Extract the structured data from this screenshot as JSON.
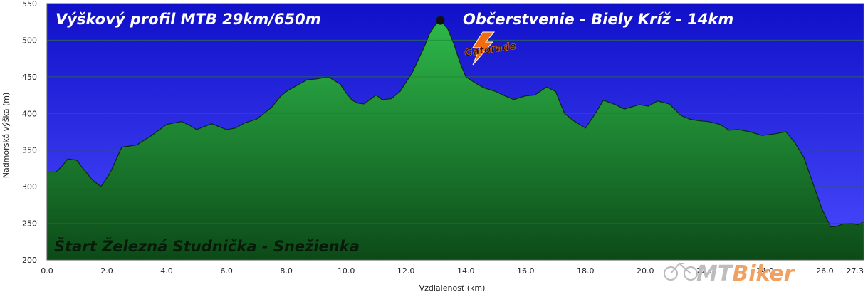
{
  "chart_data": {
    "type": "area",
    "title": "Výškový profil MTB 29km/650m",
    "xlabel": "Vzdialenosť   (km)",
    "ylabel": "Nadmorská výška (m)",
    "xlim": [
      0,
      27.3
    ],
    "ylim": [
      200,
      550
    ],
    "x_ticks": [
      "0.0",
      "2.0",
      "4.0",
      "6.0",
      "8.0",
      "10.0",
      "12.0",
      "14.0",
      "16.0",
      "18.0",
      "20.0",
      "22.0",
      "24.0",
      "26.0",
      "27.3"
    ],
    "x_tick_values": [
      0,
      2,
      4,
      6,
      8,
      10,
      12,
      14,
      16,
      18,
      20,
      22,
      24,
      26,
      27.3
    ],
    "y_ticks": [
      200,
      250,
      300,
      350,
      400,
      450,
      500,
      550
    ],
    "grid": true,
    "series": [
      {
        "x": [
          0,
          0.3,
          0.5,
          0.7,
          1.0,
          1.2,
          1.5,
          1.8,
          2.1,
          2.5,
          3.0,
          3.5,
          4.0,
          4.5,
          4.8,
          5.0,
          5.5,
          6.0,
          6.3,
          6.6,
          7.0,
          7.5,
          7.8,
          8.0,
          8.3,
          8.7,
          9.0,
          9.4,
          9.8,
          10.0,
          10.2,
          10.4,
          10.6,
          11.0,
          11.2,
          11.5,
          11.8,
          12.2,
          12.6,
          12.8,
          13.0,
          13.2,
          13.4,
          13.6,
          13.8,
          14.0,
          14.3,
          14.6,
          15.0,
          15.3,
          15.6,
          16.0,
          16.3,
          16.7,
          17.0,
          17.3,
          17.6,
          18.0,
          18.3,
          18.6,
          19.0,
          19.3,
          19.8,
          20.1,
          20.4,
          20.8,
          21.2,
          21.5,
          21.8,
          22.1,
          22.5,
          22.8,
          23.1,
          23.5,
          23.9,
          24.3,
          24.7,
          25.0,
          25.3,
          25.6,
          25.9,
          26.2,
          26.4,
          26.6,
          26.9,
          27.1,
          27.3
        ],
        "values": [
          320,
          320,
          328,
          338,
          336,
          325,
          310,
          300,
          318,
          354,
          357,
          370,
          385,
          389,
          383,
          378,
          386,
          378,
          380,
          387,
          392,
          408,
          423,
          430,
          437,
          446,
          447,
          450,
          440,
          428,
          418,
          414,
          413,
          425,
          419,
          420,
          430,
          455,
          490,
          510,
          522,
          525,
          515,
          495,
          470,
          450,
          442,
          435,
          430,
          424,
          419,
          424,
          425,
          436,
          430,
          400,
          390,
          380,
          398,
          418,
          412,
          406,
          412,
          410,
          417,
          413,
          397,
          392,
          390,
          389,
          385,
          377,
          378,
          375,
          370,
          372,
          375,
          360,
          340,
          305,
          270,
          245,
          246,
          249,
          250,
          248,
          252
        ]
      }
    ],
    "annotations": [
      {
        "text": "Občerstvenie - Biely Kríž - 14km",
        "x": 13.15,
        "y": 527,
        "marker": "dot"
      },
      {
        "text": "Štart Železná Studnička - Snežienka"
      }
    ],
    "colors": {
      "sky_top": "#1010c8",
      "sky_bottom": "#4a4aff",
      "terrain_top": "#2eb84a",
      "terrain_bottom": "#0c4a18",
      "outline": "#0a2a0a",
      "marker": "#111111"
    }
  },
  "logos": {
    "gatorade": "Gatorade",
    "gatorade_icon": "lightning-bolt-icon",
    "mtbiker_prefix": "MT",
    "mtbiker_suffix": "Biker",
    "mtbiker_icon": "bicycle-icon"
  }
}
